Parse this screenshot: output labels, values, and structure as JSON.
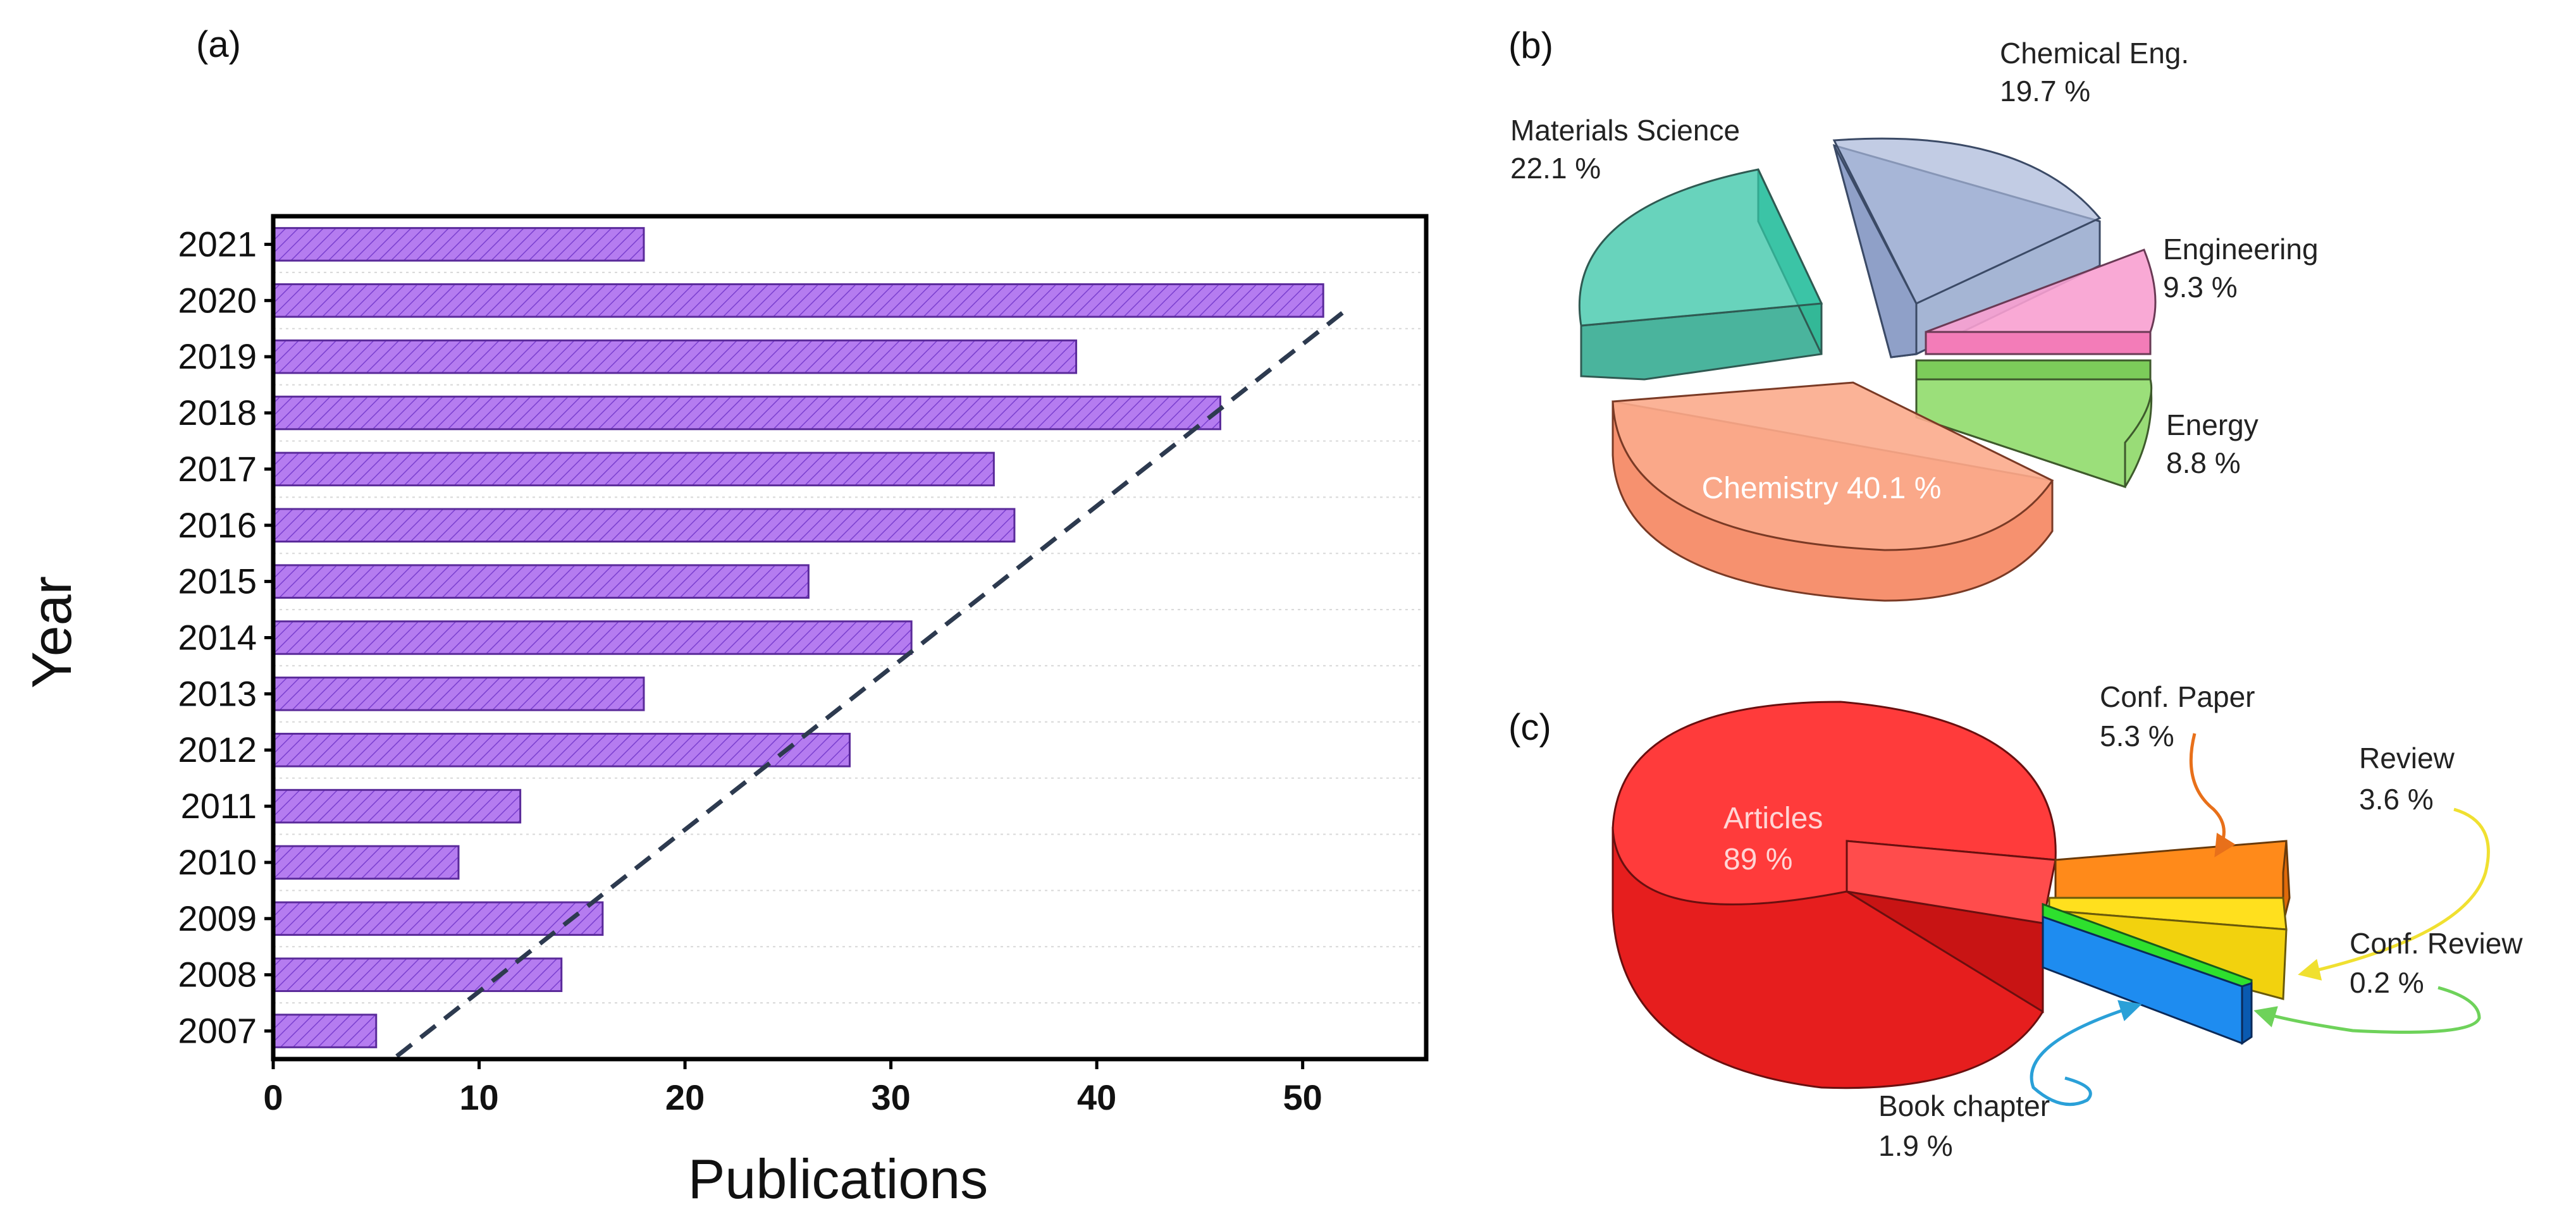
{
  "chart_data": [
    {
      "panel": "(a)",
      "type": "bar",
      "orientation": "horizontal",
      "categories": [
        "2021",
        "2020",
        "2019",
        "2018",
        "2017",
        "2016",
        "2015",
        "2014",
        "2013",
        "2012",
        "2011",
        "2010",
        "2009",
        "2008",
        "2007"
      ],
      "values": [
        18,
        51,
        39,
        46,
        35,
        36,
        26,
        31,
        18,
        28,
        12,
        9,
        16,
        14,
        5
      ],
      "xlabel": "Publications",
      "ylabel": "Year",
      "xlim": [
        0,
        56
      ],
      "xticks": [
        "0",
        "10",
        "20",
        "30",
        "40",
        "50"
      ],
      "xtick_values": [
        0,
        10,
        20,
        30,
        40,
        50
      ],
      "trend_line": {
        "from": [
          6,
          "2007"
        ],
        "to": [
          52,
          "2020"
        ],
        "style": "dashed"
      },
      "bar_color": "#b57cf0",
      "bar_hatch": "diagonal"
    },
    {
      "panel": "(b)",
      "type": "pie",
      "style": "3d-exploded",
      "slices": [
        {
          "label": "Chemistry 40.1 %",
          "name": "Chemistry",
          "value": 40.1,
          "color": "#f8906a"
        },
        {
          "label": "Materials Science",
          "pct": "22.1 %",
          "value": 22.1,
          "color": "#36c4a6"
        },
        {
          "label": "Chemical Eng.",
          "pct": "19.7 %",
          "value": 19.7,
          "color": "#94a6cc"
        },
        {
          "label": "Engineering",
          "pct": "9.3 %",
          "value": 9.3,
          "color": "#f68ac6"
        },
        {
          "label": "Energy",
          "pct": "8.8 %",
          "value": 8.8,
          "color": "#8ed868"
        }
      ]
    },
    {
      "panel": "(c)",
      "type": "pie",
      "style": "3d-exploded",
      "slices": [
        {
          "label": "Articles",
          "pct": "89 %",
          "value": 89,
          "color": "#ff2e2e"
        },
        {
          "label": "Conf. Paper",
          "pct": "5.3 %",
          "value": 5.3,
          "color": "#ff8a1a",
          "leader": "#e8701a"
        },
        {
          "label": "Review",
          "pct": "3.6 %",
          "value": 3.6,
          "color": "#ffe01e",
          "leader": "#f0e030"
        },
        {
          "label": "Conf. Review",
          "pct": "0.2 %",
          "value": 0.2,
          "color": "#2ee02e",
          "leader": "#6ed25a"
        },
        {
          "label": "Book chapter",
          "pct": "1.9 %",
          "value": 1.9,
          "color": "#1e8cf0",
          "leader": "#2aa0d8"
        }
      ]
    }
  ]
}
